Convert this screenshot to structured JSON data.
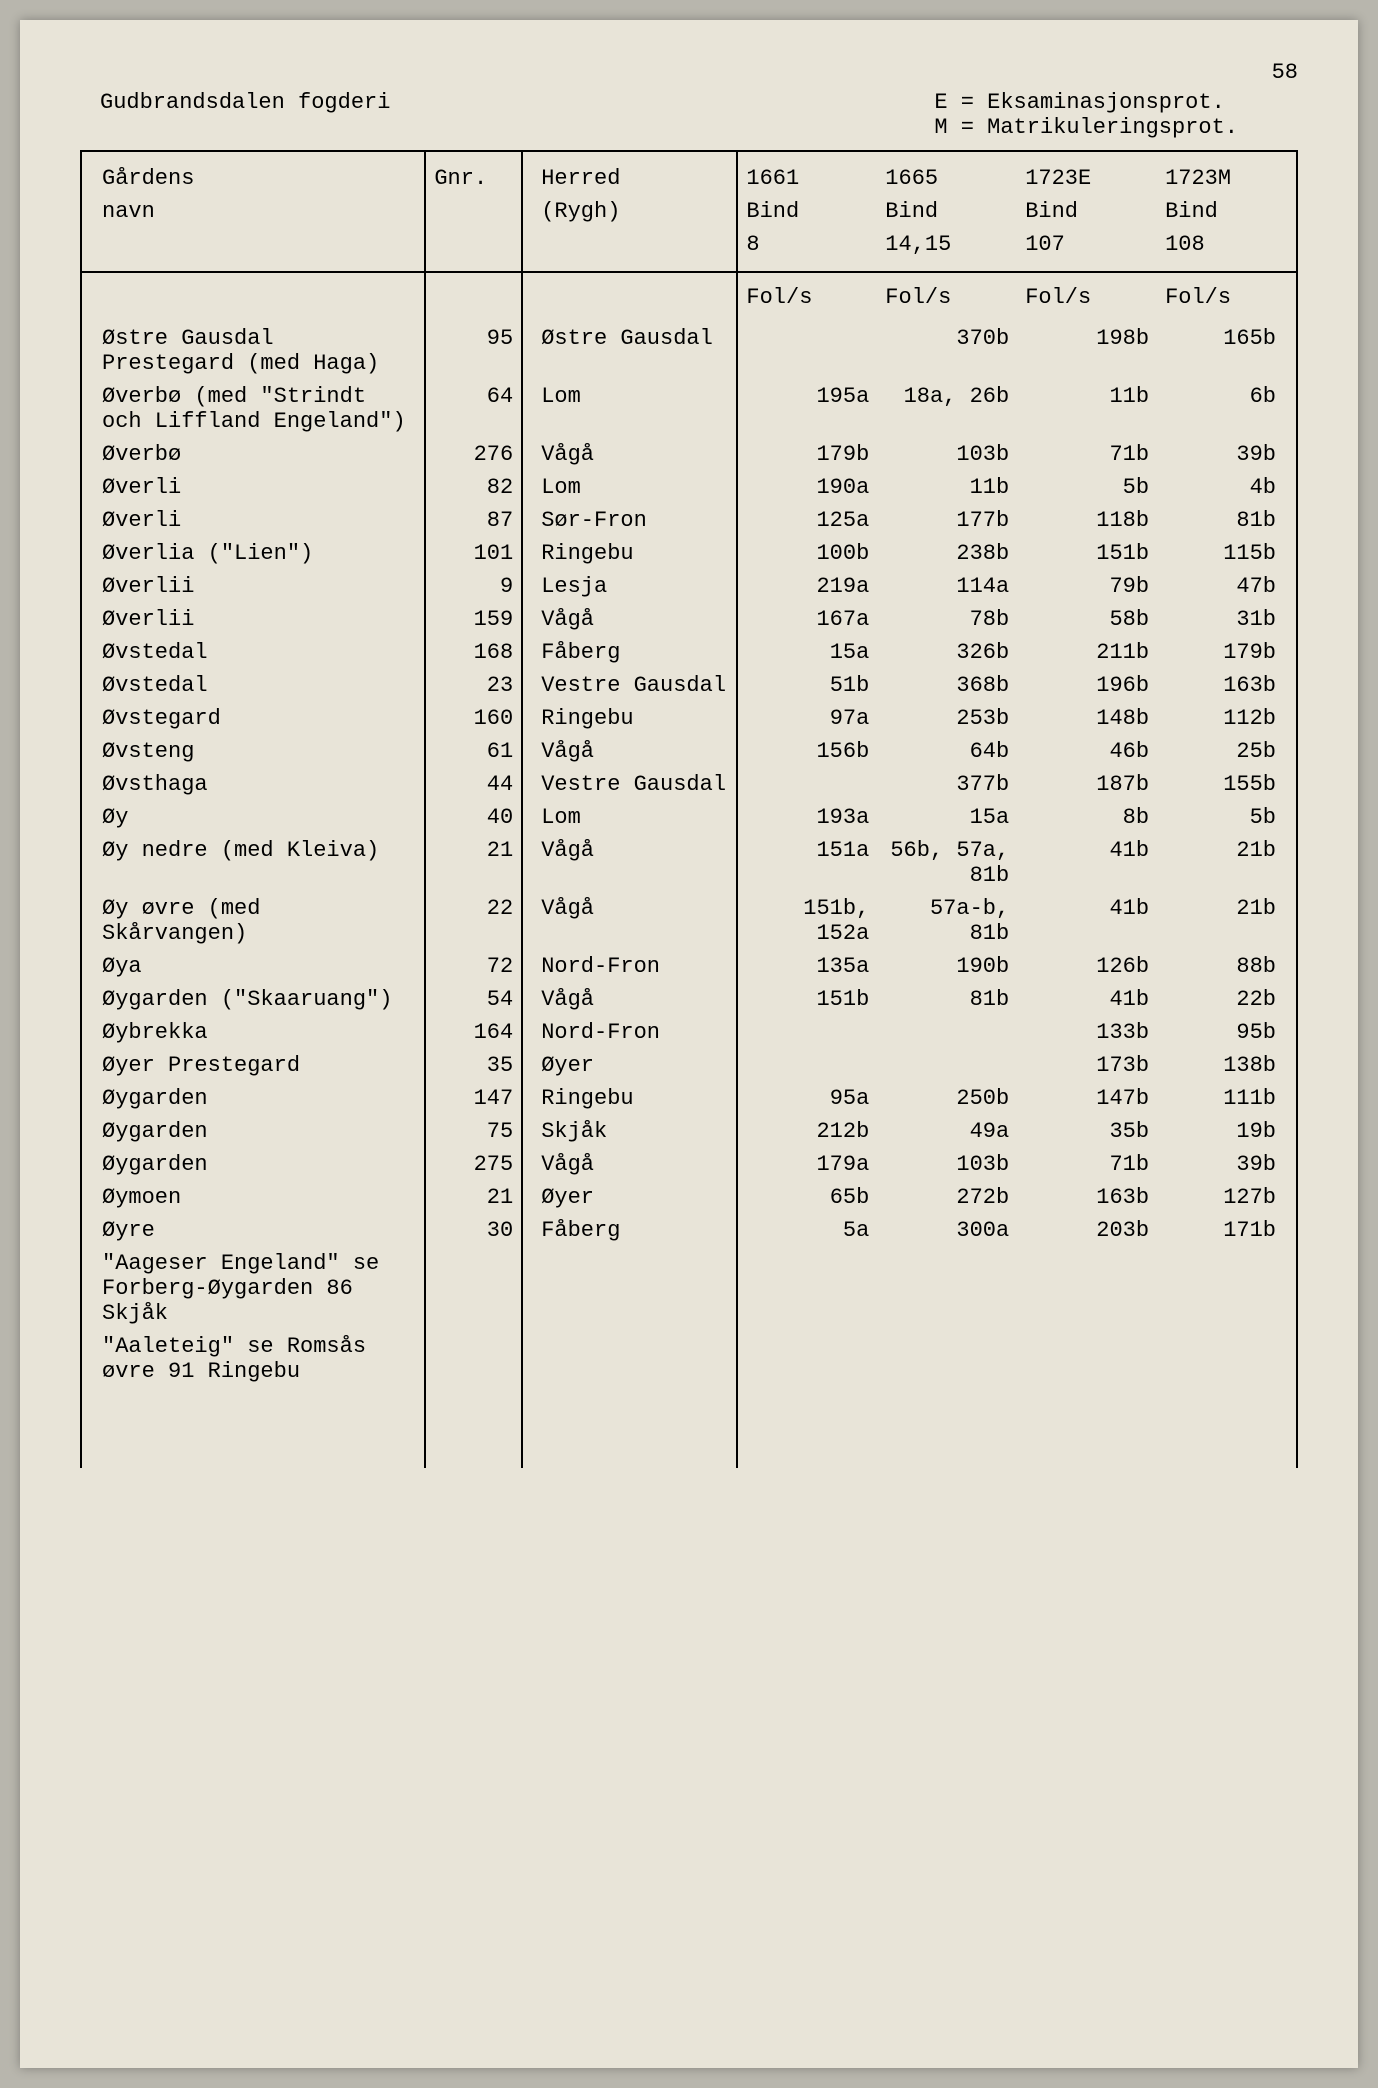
{
  "page_number": "58",
  "header": {
    "title": "Gudbrandsdalen fogderi",
    "legend": "E = Eksaminasjonsprot.\nM = Matrikuleringsprot."
  },
  "columns": {
    "name": "Gårdens\nnavn",
    "gnr": "Gnr.",
    "herred": "Herred\n(Rygh)",
    "c1661": "1661\nBind\n8",
    "c1665": "1665\nBind\n14,15",
    "c1723e": "1723E\nBind\n107",
    "c1723m": "1723M\nBind\n108"
  },
  "fols_label": "Fol/s",
  "rows": [
    {
      "name": "Østre Gausdal Prestegard (med Haga)",
      "gnr": "95",
      "herred": "Østre Gausdal",
      "c1661": "",
      "c1665": "370b",
      "c1723e": "198b",
      "c1723m": "165b"
    },
    {
      "name": "Øverbø (med \"Strindt och Liffland Engeland\")",
      "gnr": "64",
      "herred": "Lom",
      "c1661": "195a",
      "c1665": "18a, 26b",
      "c1723e": "11b",
      "c1723m": "6b"
    },
    {
      "name": "Øverbø",
      "gnr": "276",
      "herred": "Vågå",
      "c1661": "179b",
      "c1665": "103b",
      "c1723e": "71b",
      "c1723m": "39b"
    },
    {
      "name": "Øverli",
      "gnr": "82",
      "herred": "Lom",
      "c1661": "190a",
      "c1665": "11b",
      "c1723e": "5b",
      "c1723m": "4b"
    },
    {
      "name": "Øverli",
      "gnr": "87",
      "herred": "Sør-Fron",
      "c1661": "125a",
      "c1665": "177b",
      "c1723e": "118b",
      "c1723m": "81b"
    },
    {
      "name": "Øverlia (\"Lien\")",
      "gnr": "101",
      "herred": "Ringebu",
      "c1661": "100b",
      "c1665": "238b",
      "c1723e": "151b",
      "c1723m": "115b"
    },
    {
      "name": "Øverlii",
      "gnr": "9",
      "herred": "Lesja",
      "c1661": "219a",
      "c1665": "114a",
      "c1723e": "79b",
      "c1723m": "47b"
    },
    {
      "name": "Øverlii",
      "gnr": "159",
      "herred": "Vågå",
      "c1661": "167a",
      "c1665": "78b",
      "c1723e": "58b",
      "c1723m": "31b"
    },
    {
      "name": "Øvstedal",
      "gnr": "168",
      "herred": "Fåberg",
      "c1661": "15a",
      "c1665": "326b",
      "c1723e": "211b",
      "c1723m": "179b"
    },
    {
      "name": "Øvstedal",
      "gnr": "23",
      "herred": "Vestre Gausdal",
      "c1661": "51b",
      "c1665": "368b",
      "c1723e": "196b",
      "c1723m": "163b"
    },
    {
      "name": "Øvstegard",
      "gnr": "160",
      "herred": "Ringebu",
      "c1661": "97a",
      "c1665": "253b",
      "c1723e": "148b",
      "c1723m": "112b"
    },
    {
      "name": "Øvsteng",
      "gnr": "61",
      "herred": "Vågå",
      "c1661": "156b",
      "c1665": "64b",
      "c1723e": "46b",
      "c1723m": "25b"
    },
    {
      "name": "Øvsthaga",
      "gnr": "44",
      "herred": "Vestre Gausdal",
      "c1661": "",
      "c1665": "377b",
      "c1723e": "187b",
      "c1723m": "155b"
    },
    {
      "name": "Øy",
      "gnr": "40",
      "herred": "Lom",
      "c1661": "193a",
      "c1665": "15a",
      "c1723e": "8b",
      "c1723m": "5b"
    },
    {
      "name": "Øy nedre (med Kleiva)",
      "gnr": "21",
      "herred": "Vågå",
      "c1661": "151a",
      "c1665": "56b, 57a, 81b",
      "c1723e": "41b",
      "c1723m": "21b"
    },
    {
      "name": "Øy øvre (med Skårvangen)",
      "gnr": "22",
      "herred": "Vågå",
      "c1661": "151b, 152a",
      "c1665": "57a-b, 81b",
      "c1723e": "41b",
      "c1723m": "21b"
    },
    {
      "name": "Øya",
      "gnr": "72",
      "herred": "Nord-Fron",
      "c1661": "135a",
      "c1665": "190b",
      "c1723e": "126b",
      "c1723m": "88b"
    },
    {
      "name": "Øygarden (\"Skaaruang\")",
      "gnr": "54",
      "herred": "Vågå",
      "c1661": "151b",
      "c1665": "81b",
      "c1723e": "41b",
      "c1723m": "22b"
    },
    {
      "name": "Øybrekka",
      "gnr": "164",
      "herred": "Nord-Fron",
      "c1661": "",
      "c1665": "",
      "c1723e": "133b",
      "c1723m": "95b"
    },
    {
      "name": "Øyer Prestegard",
      "gnr": "35",
      "herred": "Øyer",
      "c1661": "",
      "c1665": "",
      "c1723e": "173b",
      "c1723m": "138b"
    },
    {
      "name": "Øygarden",
      "gnr": "147",
      "herred": "Ringebu",
      "c1661": "95a",
      "c1665": "250b",
      "c1723e": "147b",
      "c1723m": "111b"
    },
    {
      "name": "Øygarden",
      "gnr": "75",
      "herred": "Skjåk",
      "c1661": "212b",
      "c1665": "49a",
      "c1723e": "35b",
      "c1723m": "19b"
    },
    {
      "name": "Øygarden",
      "gnr": "275",
      "herred": "Vågå",
      "c1661": "179a",
      "c1665": "103b",
      "c1723e": "71b",
      "c1723m": "39b"
    },
    {
      "name": "Øymoen",
      "gnr": "21",
      "herred": "Øyer",
      "c1661": "65b",
      "c1665": "272b",
      "c1723e": "163b",
      "c1723m": "127b"
    },
    {
      "name": "Øyre",
      "gnr": "30",
      "herred": "Fåberg",
      "c1661": "5a",
      "c1665": "300a",
      "c1723e": "203b",
      "c1723m": "171b"
    },
    {
      "name": "\"Aageser Engeland\" se Forberg-Øygarden 86 Skjåk",
      "gnr": "",
      "herred": "",
      "c1661": "",
      "c1665": "",
      "c1723e": "",
      "c1723m": ""
    },
    {
      "name": "\"Aaleteig\" se Romsås øvre 91 Ringebu",
      "gnr": "",
      "herred": "",
      "c1661": "",
      "c1665": "",
      "c1723e": "",
      "c1723m": ""
    }
  ]
}
